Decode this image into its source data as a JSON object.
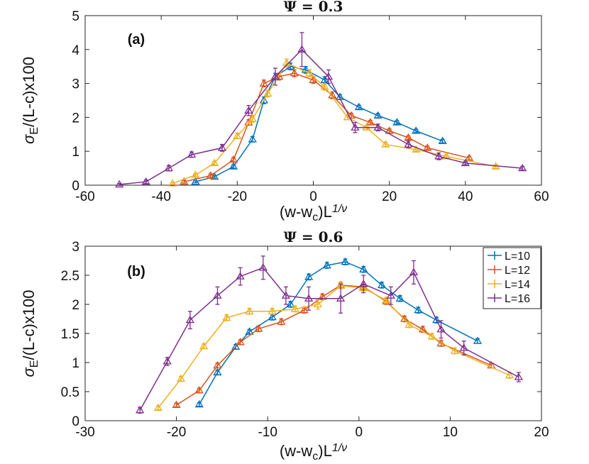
{
  "chart_data": [
    {
      "type": "line",
      "title_symbol": "Ψ",
      "title_value": " = 0.3",
      "panel_label": "(a)",
      "xlabel_main": "(w-w",
      "xlabel_sub": "c",
      "xlabel_after": ")L",
      "xlabel_sup": "1/ν",
      "ylabel_main": "σ",
      "ylabel_sub": "E",
      "ylabel_after": "/(L-c)x100",
      "xlim": [
        -60,
        60
      ],
      "ylim": [
        0,
        5
      ],
      "xticks": [
        -60,
        -40,
        -20,
        0,
        20,
        40,
        60
      ],
      "yticks": [
        0,
        1,
        2,
        3,
        4,
        5
      ],
      "series": [
        {
          "name": "L=10",
          "color": "#0072BD",
          "x": [
            -31,
            -26,
            -21,
            -16,
            -13,
            -10,
            -6,
            -2,
            3,
            7,
            12,
            17,
            22,
            27,
            34
          ],
          "y": [
            0.1,
            0.25,
            0.55,
            1.35,
            2.5,
            3.2,
            3.5,
            3.4,
            3.1,
            2.6,
            2.3,
            2.05,
            1.85,
            1.6,
            1.3
          ],
          "err": [
            0.03,
            0.04,
            0.05,
            0.08,
            0.1,
            0.1,
            0.1,
            0.1,
            0.1,
            0.07,
            0.06,
            0.06,
            0.05,
            0.05,
            0.05
          ]
        },
        {
          "name": "L=12",
          "color": "#D95319",
          "x": [
            -34,
            -27,
            -21,
            -17,
            -13,
            -9,
            -5,
            0,
            5,
            10,
            15,
            20,
            25,
            30,
            41
          ],
          "y": [
            0.1,
            0.28,
            0.75,
            1.85,
            3.0,
            3.2,
            3.3,
            3.1,
            2.65,
            2.05,
            1.85,
            1.6,
            1.4,
            1.1,
            0.8
          ],
          "err": [
            0.04,
            0.05,
            0.06,
            0.08,
            0.1,
            0.1,
            0.1,
            0.1,
            0.1,
            0.07,
            0.06,
            0.06,
            0.05,
            0.05,
            0.05
          ]
        },
        {
          "name": "L=14",
          "color": "#EDB120",
          "x": [
            -37,
            -31,
            -26,
            -20,
            -16,
            -12,
            -7,
            -1,
            3,
            9,
            14,
            19,
            27,
            35,
            48
          ],
          "y": [
            0.05,
            0.3,
            0.65,
            1.45,
            1.95,
            2.7,
            3.6,
            3.3,
            2.9,
            2.0,
            1.7,
            1.2,
            1.05,
            0.85,
            0.55
          ],
          "err": [
            0.03,
            0.04,
            0.05,
            0.08,
            0.1,
            0.1,
            0.12,
            0.1,
            0.1,
            0.07,
            0.06,
            0.06,
            0.05,
            0.05,
            0.05
          ]
        },
        {
          "name": "L=16",
          "color": "#7E2F8E",
          "x": [
            -51,
            -44,
            -38,
            -32,
            -24,
            -17,
            -10,
            -3,
            4,
            11,
            17,
            25,
            33,
            40,
            55
          ],
          "y": [
            0.02,
            0.1,
            0.5,
            0.9,
            1.1,
            2.2,
            3.2,
            4.0,
            3.2,
            1.7,
            1.7,
            1.2,
            0.85,
            0.65,
            0.5
          ],
          "err": [
            0.03,
            0.05,
            0.08,
            0.08,
            0.1,
            0.15,
            0.25,
            0.5,
            0.2,
            0.15,
            0.1,
            0.1,
            0.1,
            0.05,
            0.05
          ]
        }
      ]
    },
    {
      "type": "line",
      "title_symbol": "Ψ",
      "title_value": " = 0.6",
      "panel_label": "(b)",
      "xlabel_main": "(w-w",
      "xlabel_sub": "c",
      "xlabel_after": ")L",
      "xlabel_sup": "1/ν",
      "ylabel_main": "σ",
      "ylabel_sub": "E",
      "ylabel_after": "/(L-c)x100",
      "xlim": [
        -30,
        20
      ],
      "ylim": [
        0,
        3
      ],
      "xticks": [
        -30,
        -20,
        -10,
        0,
        10,
        20
      ],
      "yticks": [
        0,
        0.5,
        1,
        1.5,
        2,
        2.5,
        3
      ],
      "ytick_labels": [
        "0",
        "0.5",
        "1",
        "1.5",
        "2",
        "2.5",
        "3"
      ],
      "legend_position": "top-right",
      "series": [
        {
          "name": "L=10",
          "color": "#0072BD",
          "x": [
            -17.5,
            -15.5,
            -13.5,
            -12,
            -9.5,
            -7.5,
            -5.5,
            -3.5,
            -1.5,
            0.5,
            2.5,
            4.5,
            6.5,
            8.5,
            13
          ],
          "y": [
            0.28,
            0.83,
            1.27,
            1.53,
            1.78,
            2.0,
            2.47,
            2.67,
            2.73,
            2.6,
            2.33,
            2.1,
            1.9,
            1.73,
            1.37
          ],
          "err": [
            0.03,
            0.04,
            0.04,
            0.04,
            0.05,
            0.05,
            0.05,
            0.05,
            0.05,
            0.05,
            0.05,
            0.05,
            0.05,
            0.05,
            0.04
          ]
        },
        {
          "name": "L=12",
          "color": "#D95319",
          "x": [
            -20,
            -17.5,
            -15.5,
            -13,
            -11,
            -8.5,
            -6,
            -4,
            -2,
            0.5,
            3,
            5,
            7,
            9,
            14.5
          ],
          "y": [
            0.27,
            0.52,
            0.95,
            1.35,
            1.58,
            1.7,
            1.9,
            2.13,
            2.33,
            2.3,
            2.05,
            1.75,
            1.57,
            1.33,
            0.95
          ],
          "err": [
            0.03,
            0.04,
            0.04,
            0.04,
            0.05,
            0.05,
            0.05,
            0.05,
            0.05,
            0.05,
            0.05,
            0.05,
            0.05,
            0.05,
            0.04
          ]
        },
        {
          "name": "L=14",
          "color": "#EDB120",
          "x": [
            -22,
            -19.5,
            -17,
            -14.5,
            -12,
            -9.5,
            -7,
            -4.5,
            -2,
            0.5,
            3,
            5.5,
            8,
            10.5,
            16.5
          ],
          "y": [
            0.22,
            0.72,
            1.28,
            1.77,
            1.88,
            1.88,
            1.92,
            2.0,
            2.32,
            2.28,
            2.07,
            1.65,
            1.45,
            1.2,
            0.78
          ],
          "err": [
            0.03,
            0.04,
            0.04,
            0.05,
            0.05,
            0.05,
            0.05,
            0.08,
            0.05,
            0.05,
            0.05,
            0.05,
            0.05,
            0.05,
            0.05
          ]
        },
        {
          "name": "L=16",
          "color": "#7E2F8E",
          "x": [
            -24,
            -21,
            -18.5,
            -15.5,
            -13,
            -10.5,
            -8,
            -5.5,
            -2,
            0.5,
            3.5,
            6,
            9,
            11.5,
            17.5
          ],
          "y": [
            0.18,
            1.02,
            1.73,
            2.15,
            2.48,
            2.63,
            2.15,
            2.1,
            2.1,
            2.35,
            2.15,
            2.55,
            1.57,
            1.25,
            0.75
          ],
          "err": [
            0.05,
            0.07,
            0.15,
            0.15,
            0.15,
            0.2,
            0.15,
            0.2,
            0.25,
            0.15,
            0.15,
            0.2,
            0.15,
            0.12,
            0.08
          ]
        }
      ]
    }
  ]
}
